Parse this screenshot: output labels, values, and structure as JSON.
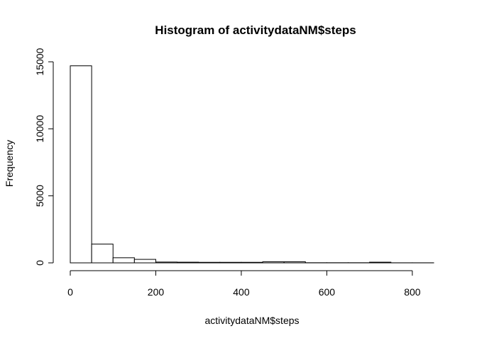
{
  "chart_data": {
    "type": "bar",
    "title": "Histogram of activitydataNM$steps",
    "xlabel": "activitydataNM$steps",
    "ylabel": "Frequency",
    "bin_edges": [
      0,
      50,
      100,
      150,
      200,
      250,
      300,
      350,
      400,
      450,
      500,
      550,
      600,
      650,
      700,
      750,
      800,
      850
    ],
    "values": [
      14700,
      1400,
      380,
      260,
      60,
      50,
      40,
      40,
      40,
      80,
      80,
      10,
      10,
      10,
      50,
      5,
      5
    ],
    "xlim": [
      0,
      850
    ],
    "ylim": [
      0,
      15000
    ],
    "x_ticks": [
      0,
      200,
      400,
      600,
      800
    ],
    "y_ticks": [
      0,
      5000,
      10000,
      15000
    ],
    "grid": false,
    "bar_fill": "#ffffff",
    "bar_stroke": "#000000"
  }
}
